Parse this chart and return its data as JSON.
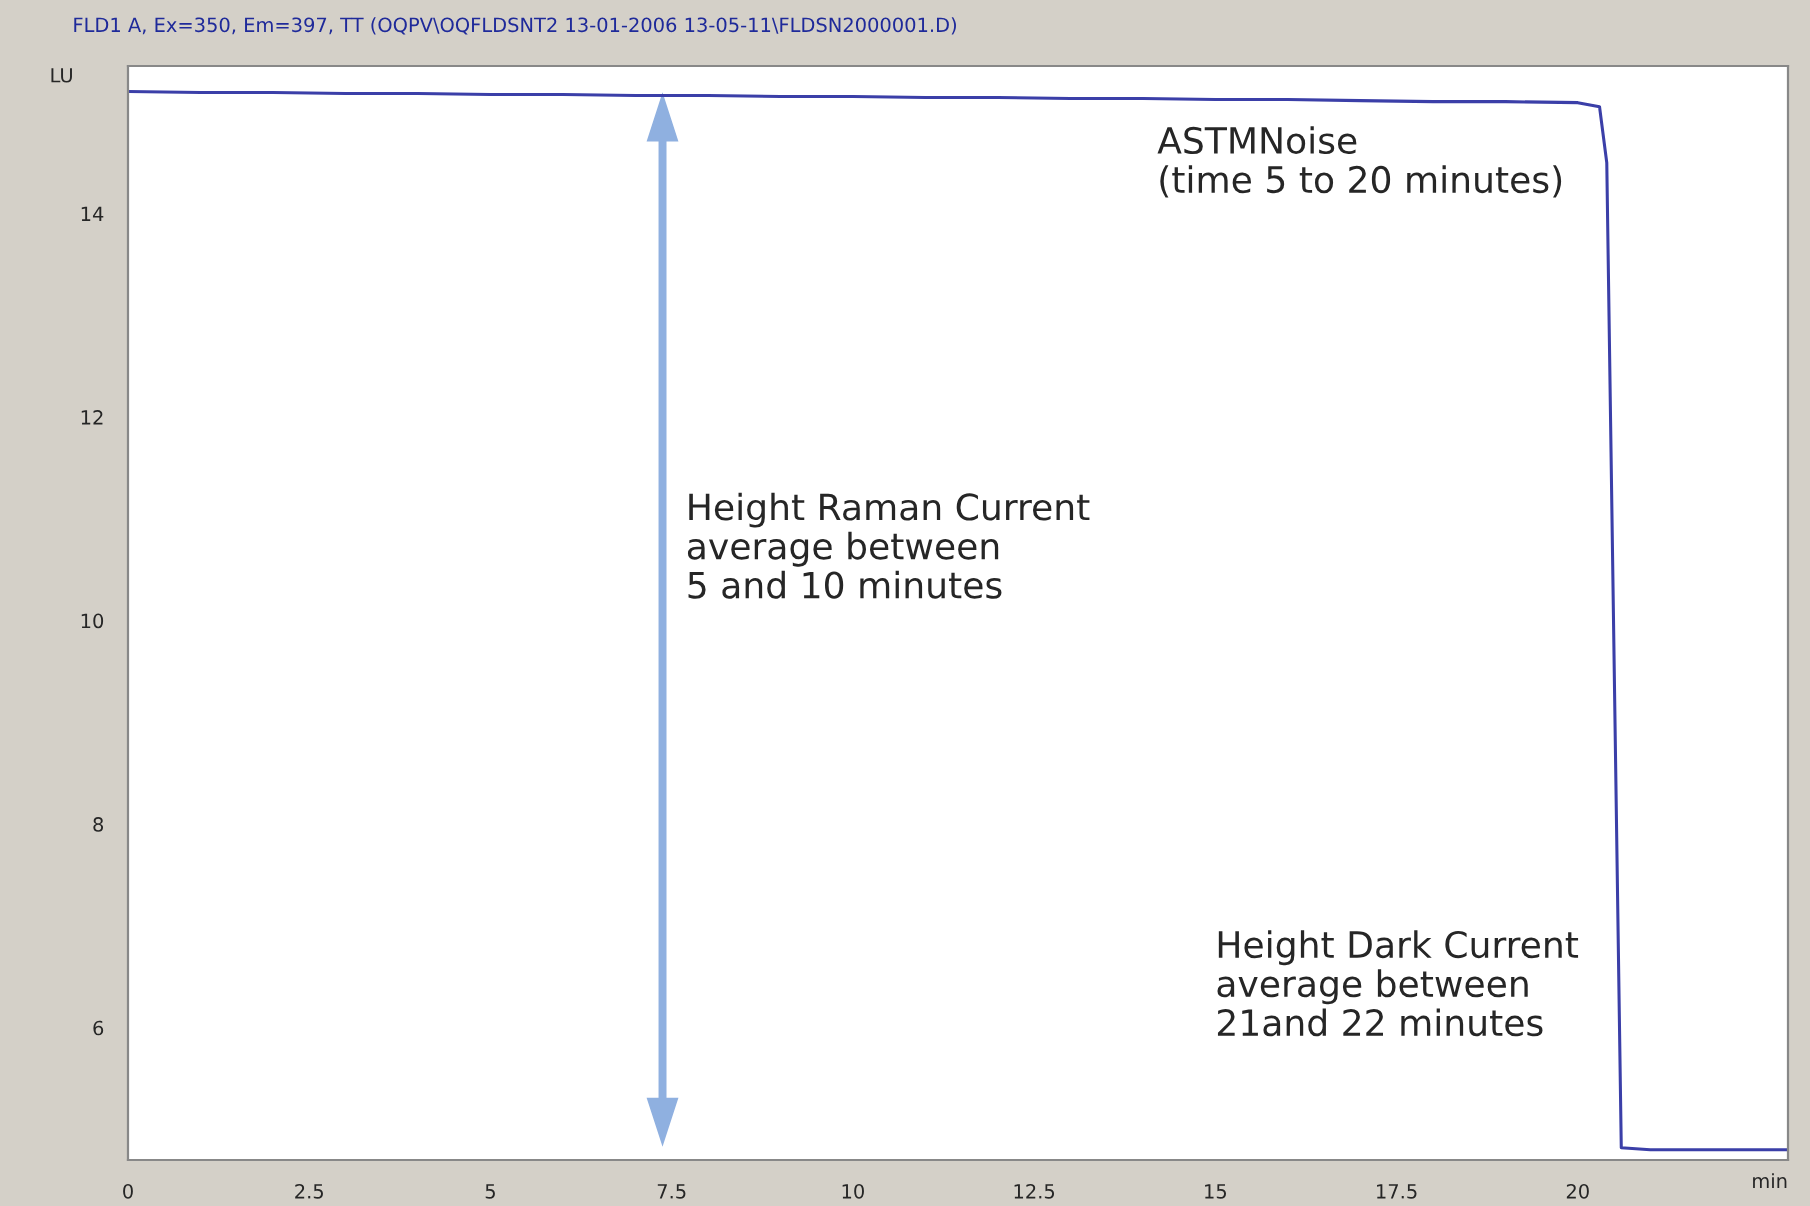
{
  "chart_data": {
    "type": "line",
    "title": "FLD1 A, Ex=350, Em=397, TT (OQPV\\OQFLDSNT2 13-01-2006 13-05-11\\FLDSN2000001.D)",
    "xlabel": "min",
    "ylabel": "LU",
    "x": [
      0,
      1,
      2,
      3,
      4,
      5,
      6,
      7,
      8,
      9,
      10,
      11,
      12,
      13,
      14,
      15,
      16,
      17,
      18,
      19,
      20,
      20.3,
      20.4,
      20.6,
      21,
      22,
      22.9
    ],
    "series": [
      {
        "color": "#3b3fa8",
        "values": [
          15.2,
          15.19,
          15.19,
          15.18,
          15.18,
          15.17,
          15.17,
          15.16,
          15.16,
          15.15,
          15.15,
          15.14,
          15.14,
          15.13,
          15.13,
          15.12,
          15.12,
          15.11,
          15.1,
          15.1,
          15.09,
          15.05,
          14.5,
          4.82,
          4.8,
          4.8,
          4.8
        ]
      }
    ],
    "xlim": [
      0,
      22.9
    ],
    "ylim": [
      4.7,
      15.45
    ],
    "xticks": [
      0,
      2.5,
      5,
      7.5,
      10,
      12.5,
      15,
      17.5,
      20
    ],
    "yticks": [
      6,
      8,
      10,
      12,
      14
    ],
    "grid": false,
    "legend": false,
    "marker": "none",
    "line_style": "solid",
    "annotations": [
      "ASTMNoise\n(time 5 to 20 minutes)",
      "Height Raman Current\naverage between\n5 and 10 minutes",
      "Height Dark Current\naverage between\n21and 22 minutes"
    ]
  }
}
